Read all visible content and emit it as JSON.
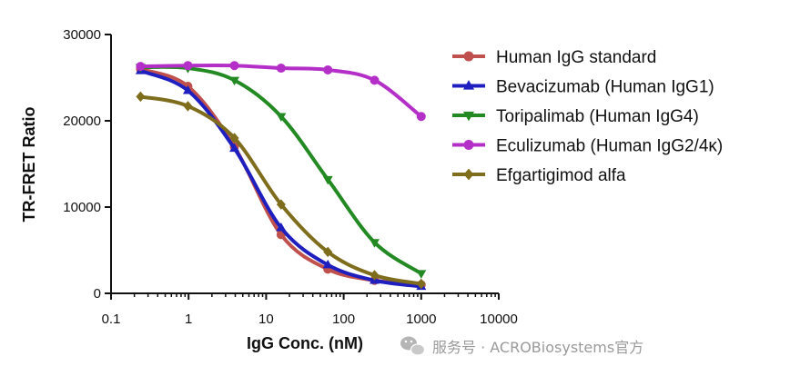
{
  "chart_data": {
    "type": "line",
    "xscale": "log",
    "xlabel": "IgG Conc. (nM)",
    "ylabel": "TR-FRET Ratio",
    "xlim": [
      0.1,
      10000
    ],
    "ylim": [
      0,
      30000
    ],
    "x_ticks": [
      0.1,
      1,
      10,
      100,
      1000,
      10000
    ],
    "x_tick_labels": [
      "0.1",
      "1",
      "10",
      "100",
      "1000",
      "10000"
    ],
    "y_ticks": [
      0,
      10000,
      20000,
      30000
    ],
    "y_tick_labels": [
      "0",
      "10000",
      "20000",
      "30000"
    ],
    "x": [
      0.24,
      0.98,
      3.9,
      15.6,
      62.5,
      250,
      1000
    ],
    "series": [
      {
        "name": "Human IgG standard",
        "color": "#c0504d",
        "marker": "circle",
        "values": [
          26000,
          24000,
          17000,
          6800,
          2800,
          1500,
          1000
        ]
      },
      {
        "name": "Bevacizumab (Human IgG1)",
        "color": "#1f1fbf",
        "marker": "triangle-up",
        "values": [
          25800,
          23500,
          16800,
          7600,
          3300,
          1500,
          800
        ]
      },
      {
        "name": "Toripalimab (Human IgG4)",
        "color": "#238a23",
        "marker": "triangle-down",
        "values": [
          26200,
          26100,
          24700,
          20500,
          13200,
          5900,
          2300
        ]
      },
      {
        "name": "Eculizumab (Human IgG2/4κ)",
        "color": "#b42fc8",
        "marker": "circle",
        "values": [
          26300,
          26400,
          26400,
          26100,
          25900,
          24700,
          20500
        ]
      },
      {
        "name": "Efgartigimod alfa",
        "color": "#7f6d1e",
        "marker": "diamond",
        "values": [
          22800,
          21700,
          18000,
          10300,
          4800,
          2100,
          1100
        ]
      }
    ]
  },
  "watermark": {
    "icon": "wechat-icon",
    "text": "服务号 · ACROBiosystems官方"
  }
}
